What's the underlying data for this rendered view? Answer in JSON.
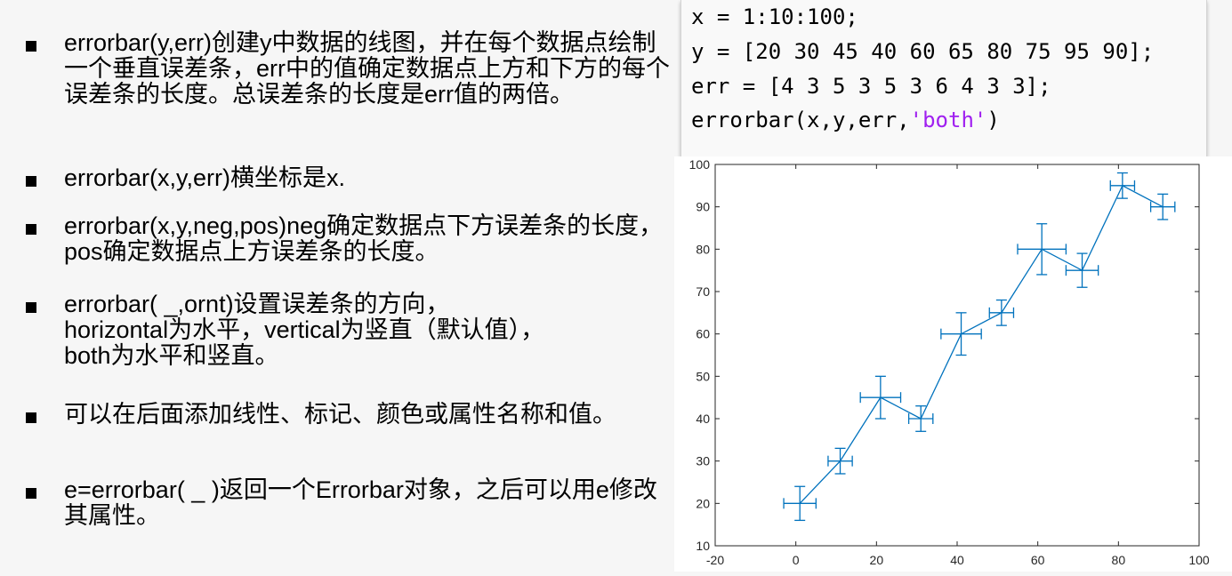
{
  "bullets": [
    {
      "text": "errorbar(y,err)创建y中数据的线图，并在每个数据点绘制一个垂直误差条，err中的值确定数据点上方和下方的每个误差条的长度。总误差条的长度是err值的两倍。"
    },
    {
      "text": "errorbar(x,y,err)横坐标是x."
    },
    {
      "text": "errorbar(x,y,neg,pos)neg确定数据点下方误差条的长度，pos确定数据点上方误差条的长度。"
    },
    {
      "text": "errorbar( _,ornt)设置误差条的方向，\nhorizontal为水平，vertical为竖直（默认值），\nboth为水平和竖直。"
    },
    {
      "text": "可以在后面添加线性、标记、颜色或属性名称和值。"
    },
    {
      "text": "e=errorbar( _ )返回一个Errorbar对象，之后可以用e修改其属性。"
    }
  ],
  "code": {
    "line1": "x = 1:10:100;",
    "line2": "y = [20 30 45 40 60 65 80 75 95 90];",
    "line3": "err = [4 3 5 3 5 3 6 4 3 3];",
    "line4_pre": "errorbar(x,y,err,",
    "line4_str": "'both'",
    "line4_post": ")"
  },
  "colors": {
    "series": "#0072bd",
    "string_literal": "#a020f0"
  },
  "chart_data": {
    "type": "line",
    "style": "errorbar-both",
    "x": [
      1,
      11,
      21,
      31,
      41,
      51,
      61,
      71,
      81,
      91
    ],
    "y": [
      20,
      30,
      45,
      40,
      60,
      65,
      80,
      75,
      95,
      90
    ],
    "err": [
      4,
      3,
      5,
      3,
      5,
      3,
      6,
      4,
      3,
      3
    ],
    "xlim": [
      -20,
      100
    ],
    "ylim": [
      10,
      100
    ],
    "xticks": [
      "-20",
      "0",
      "20",
      "40",
      "60",
      "80",
      "100"
    ],
    "yticks": [
      "10",
      "20",
      "30",
      "40",
      "50",
      "60",
      "70",
      "80",
      "90",
      "100"
    ],
    "title": "",
    "xlabel": "",
    "ylabel": "",
    "grid": false
  }
}
